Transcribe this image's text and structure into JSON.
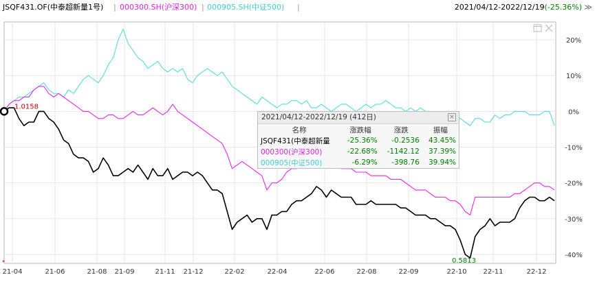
{
  "legend": {
    "items": [
      {
        "label": "JSQF431.OF(中泰超新量1号)",
        "color": "#000000"
      },
      {
        "label": "000300.SH(沪深300)",
        "color": "#ee22ee"
      },
      {
        "label": "000905.SH(中证500)",
        "color": "#55dddd"
      }
    ],
    "separator": "|",
    "range": "2021/04/12-2022/12/19",
    "range_pct": "(-25.36%)",
    "range_arrow": "≫"
  },
  "chart_data": {
    "type": "line",
    "x_ticks": [
      "21-04",
      "21-06",
      "21-08",
      "21-09",
      "21-11",
      "21-12",
      "22-02",
      "22-04",
      "22-06",
      "22-08",
      "22-09",
      "22-10",
      "22-11",
      "22-12"
    ],
    "y_ticks": [
      "20%",
      "10%",
      "0%",
      "-10%",
      "-20%",
      "-30%",
      "-40%"
    ],
    "ylim": [
      -42.5,
      25
    ],
    "annotations": {
      "start_value": "1.0158",
      "min_value": "0.5813"
    },
    "series": [
      {
        "name": "JSQF431.OF(中泰超新量1号)",
        "color": "#000000",
        "values": [
          0,
          1,
          1,
          -2,
          -4,
          -3,
          -3,
          0,
          0,
          -2,
          -3,
          -5,
          -8,
          -9,
          -12,
          -13,
          -13,
          -14,
          -17,
          -16,
          -13,
          -15,
          -18,
          -18,
          -17,
          -16,
          -17,
          -15,
          -17,
          -19,
          -16,
          -18,
          -18,
          -16,
          -19,
          -18,
          -17,
          -17,
          -18,
          -17,
          -18,
          -20,
          -22,
          -22,
          -23,
          -28,
          -33,
          -31,
          -30,
          -29,
          -31,
          -30,
          -30,
          -33,
          -29,
          -29,
          -28,
          -28,
          -26,
          -25,
          -25,
          -24,
          -23,
          -21,
          -22,
          -24,
          -22,
          -23,
          -24,
          -24,
          -24,
          -26,
          -26,
          -26,
          -25,
          -26,
          -26,
          -26,
          -26,
          -26,
          -27,
          -27,
          -28,
          -29,
          -29,
          -29,
          -30,
          -30,
          -31,
          -32,
          -32,
          -33,
          -36,
          -40,
          -41,
          -35,
          -33,
          -32,
          -30,
          -32,
          -31,
          -31,
          -31,
          -30,
          -27,
          -25,
          -24,
          -24,
          -25,
          -25,
          -24,
          -25
        ]
      },
      {
        "name": "000300.SH(沪深300)",
        "color": "#ee22ee",
        "values": [
          0,
          2,
          3,
          3,
          4,
          4,
          6,
          7,
          7,
          5,
          4,
          5,
          4,
          3,
          2,
          1,
          0,
          0,
          -1,
          -2,
          -2,
          -1,
          -1,
          -2,
          -2,
          -1,
          0,
          -1,
          -1,
          0,
          1,
          0,
          -1,
          0,
          2,
          0,
          -1,
          -2,
          -3,
          -4,
          -5,
          -6,
          -7,
          -8,
          -9,
          -12,
          -16,
          -15,
          -14,
          -15,
          -16,
          -17,
          -18,
          -22,
          -20,
          -20,
          -19,
          -17,
          -16,
          -16,
          -15,
          -14,
          -13,
          -13,
          -14,
          -15,
          -15,
          -15,
          -16,
          -16,
          -16,
          -17,
          -17,
          -17,
          -18,
          -18,
          -18,
          -18,
          -19,
          -19,
          -19,
          -20,
          -21,
          -22,
          -22,
          -22,
          -23,
          -24,
          -24,
          -24,
          -25,
          -25,
          -26,
          -28,
          -29,
          -24,
          -24,
          -24,
          -24,
          -24,
          -24,
          -24,
          -24,
          -23,
          -23,
          -22,
          -21,
          -20,
          -20,
          -21,
          -21,
          -22
        ]
      },
      {
        "name": "000905.SH(中证500)",
        "color": "#55dddd",
        "values": [
          0,
          2,
          3,
          4,
          4,
          5,
          6,
          7,
          8,
          6,
          5,
          5,
          4,
          6,
          5,
          7,
          9,
          10,
          9,
          8,
          10,
          13,
          15,
          20,
          23,
          19,
          17,
          15,
          14,
          12,
          13,
          14,
          12,
          11,
          12,
          11,
          12,
          9,
          8,
          10,
          11,
          12,
          11,
          10,
          11,
          9,
          7,
          6,
          5,
          4,
          3,
          2,
          4,
          3,
          2,
          1,
          2,
          2,
          3,
          3,
          2,
          3,
          1,
          1,
          2,
          1,
          0,
          1,
          2,
          2,
          1,
          0,
          1,
          2,
          1,
          2,
          2,
          3,
          2,
          1,
          1,
          0,
          1,
          0,
          1,
          0,
          -1,
          0,
          -1,
          -2,
          -1,
          -1,
          -2,
          -3,
          -4,
          -2,
          -2,
          -3,
          -3,
          -1,
          -2,
          -1,
          -1,
          0,
          0,
          0,
          -1,
          -1,
          -1,
          0,
          0,
          -4
        ]
      }
    ]
  },
  "tooltip": {
    "title": "2021/04/12-2022/12/19 (412日)",
    "close": "×",
    "columns": [
      "名称",
      "涨跌幅",
      "涨跌",
      "振幅"
    ],
    "rows": [
      {
        "name": "JSQF431(中泰超新量",
        "pct": "-25.36%",
        "chg": "-0.2536",
        "amp": "43.45%",
        "color": "#000000"
      },
      {
        "name": "000300(沪深300)",
        "pct": "-22.68%",
        "chg": "-1142.12",
        "amp": "37.39%",
        "color": "#ee22ee"
      },
      {
        "name": "000905(中证500)",
        "pct": "-6.29%",
        "chg": "-398.76",
        "amp": "39.94%",
        "color": "#55dddd"
      }
    ]
  }
}
